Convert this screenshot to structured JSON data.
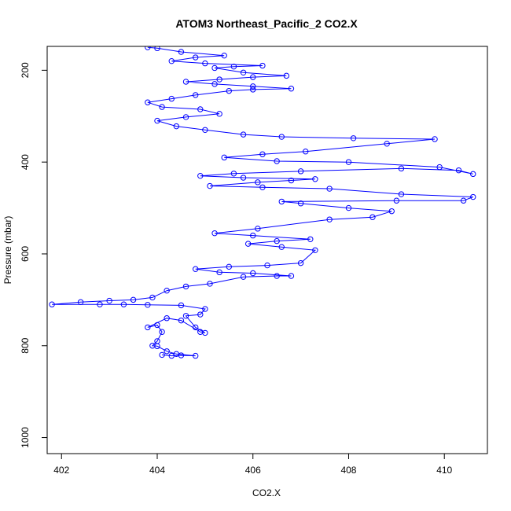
{
  "chart_data": {
    "type": "scatter",
    "title": "ATOM3 Northeast_Pacific_2 CO2.X",
    "xlabel": "CO2.X",
    "ylabel": "Pressure (mbar)",
    "xlim": [
      401.7,
      410.9
    ],
    "ylim": [
      1035,
      148
    ],
    "y_reversed": true,
    "xticks": [
      402,
      404,
      406,
      408,
      410
    ],
    "yticks": [
      200,
      400,
      600,
      800,
      1000
    ],
    "grid": false,
    "legend": "none",
    "marker": "open-circle",
    "line_connected": true,
    "color": "#0000ff",
    "series": [
      {
        "name": "",
        "points": [
          [
            404.1,
            820
          ],
          [
            404.3,
            822
          ],
          [
            404.5,
            821
          ],
          [
            404.8,
            822
          ],
          [
            404.4,
            818
          ],
          [
            404.2,
            812
          ],
          [
            404.0,
            801
          ],
          [
            403.9,
            800
          ],
          [
            404.0,
            790
          ],
          [
            404.1,
            770
          ],
          [
            404.0,
            755
          ],
          [
            403.8,
            760
          ],
          [
            404.2,
            740
          ],
          [
            404.5,
            745
          ],
          [
            404.9,
            770
          ],
          [
            405.0,
            772
          ],
          [
            404.8,
            760
          ],
          [
            404.6,
            735
          ],
          [
            404.9,
            732
          ],
          [
            405.0,
            720
          ],
          [
            404.5,
            712
          ],
          [
            403.8,
            711
          ],
          [
            403.3,
            710
          ],
          [
            402.8,
            710
          ],
          [
            401.8,
            710
          ],
          [
            402.4,
            705
          ],
          [
            403.0,
            702
          ],
          [
            403.5,
            700
          ],
          [
            403.9,
            695
          ],
          [
            404.2,
            680
          ],
          [
            404.6,
            671
          ],
          [
            405.1,
            665
          ],
          [
            405.8,
            650
          ],
          [
            406.5,
            648
          ],
          [
            406.8,
            648
          ],
          [
            406.0,
            642
          ],
          [
            405.3,
            640
          ],
          [
            404.8,
            633
          ],
          [
            405.5,
            628
          ],
          [
            406.3,
            625
          ],
          [
            407.0,
            620
          ],
          [
            407.3,
            592
          ],
          [
            406.6,
            585
          ],
          [
            405.9,
            578
          ],
          [
            406.5,
            572
          ],
          [
            407.2,
            568
          ],
          [
            406.0,
            560
          ],
          [
            405.2,
            555
          ],
          [
            406.1,
            545
          ],
          [
            407.6,
            525
          ],
          [
            408.5,
            520
          ],
          [
            408.9,
            507
          ],
          [
            408.0,
            500
          ],
          [
            407.0,
            490
          ],
          [
            406.6,
            486
          ],
          [
            409.0,
            484
          ],
          [
            410.4,
            484
          ],
          [
            410.6,
            476
          ],
          [
            409.1,
            470
          ],
          [
            407.6,
            458
          ],
          [
            406.2,
            455
          ],
          [
            405.1,
            452
          ],
          [
            406.1,
            444
          ],
          [
            406.8,
            440
          ],
          [
            407.3,
            437
          ],
          [
            405.8,
            434
          ],
          [
            404.9,
            430
          ],
          [
            405.6,
            425
          ],
          [
            407.0,
            420
          ],
          [
            409.1,
            414
          ],
          [
            410.3,
            418
          ],
          [
            410.6,
            426
          ],
          [
            409.9,
            411
          ],
          [
            408.0,
            400
          ],
          [
            406.5,
            398
          ],
          [
            405.4,
            390
          ],
          [
            406.2,
            383
          ],
          [
            407.1,
            377
          ],
          [
            408.8,
            360
          ],
          [
            409.8,
            350
          ],
          [
            408.1,
            348
          ],
          [
            406.6,
            345
          ],
          [
            405.8,
            340
          ],
          [
            405.0,
            330
          ],
          [
            404.4,
            322
          ],
          [
            404.0,
            310
          ],
          [
            404.6,
            302
          ],
          [
            405.3,
            295
          ],
          [
            404.9,
            285
          ],
          [
            404.1,
            280
          ],
          [
            403.8,
            270
          ],
          [
            404.3,
            262
          ],
          [
            404.8,
            254
          ],
          [
            405.5,
            245
          ],
          [
            406.0,
            242
          ],
          [
            406.8,
            240
          ],
          [
            406.0,
            235
          ],
          [
            405.2,
            230
          ],
          [
            404.6,
            225
          ],
          [
            405.3,
            220
          ],
          [
            406.0,
            215
          ],
          [
            406.7,
            212
          ],
          [
            405.8,
            205
          ],
          [
            405.2,
            195
          ],
          [
            405.6,
            192
          ],
          [
            406.2,
            190
          ],
          [
            405.0,
            185
          ],
          [
            404.3,
            180
          ],
          [
            404.8,
            172
          ],
          [
            405.4,
            168
          ],
          [
            404.5,
            160
          ],
          [
            404.0,
            152
          ],
          [
            403.8,
            150
          ]
        ]
      }
    ]
  }
}
